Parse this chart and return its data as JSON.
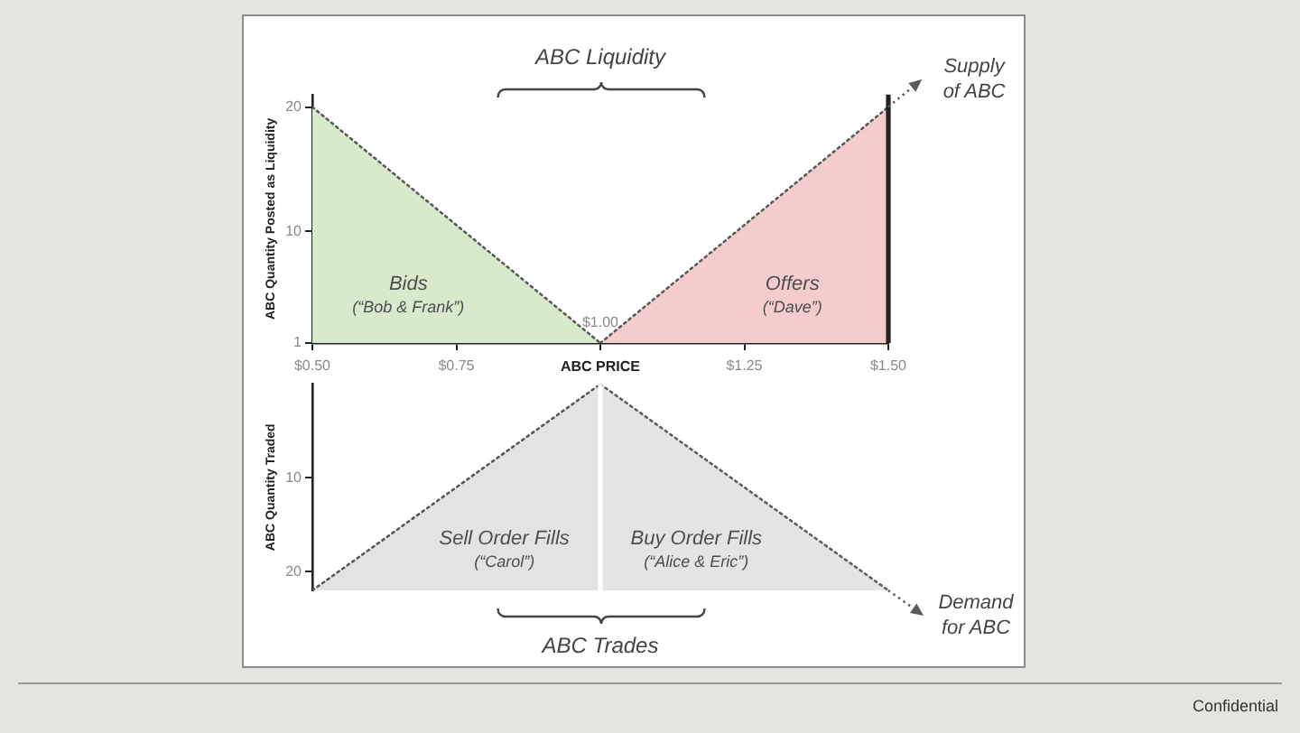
{
  "chart_data": [
    {
      "type": "area",
      "title": "ABC Liquidity",
      "xlabel": "ABC PRICE",
      "ylabel": "ABC Quantity Posted as Liquidity",
      "xlim": [
        0.5,
        1.5
      ],
      "xticks": [
        {
          "value": 0.5,
          "label": "$0.50"
        },
        {
          "value": 0.75,
          "label": "$0.75"
        },
        {
          "value": 1,
          "label": null
        },
        {
          "value": 1.25,
          "label": "$1.25"
        },
        {
          "value": 1.5,
          "label": "$1.50"
        }
      ],
      "ylim": [
        1,
        21
      ],
      "yticks": [
        1,
        10,
        20
      ],
      "line_style": "dotted",
      "series": [
        {
          "name": "Bids",
          "color": "#d8eacc",
          "x": [
            0.5,
            1
          ],
          "values": [
            20,
            1
          ]
        },
        {
          "name": "Offers",
          "color": "#f5cccc",
          "x": [
            1,
            1.5
          ],
          "values": [
            1,
            20
          ]
        }
      ],
      "ref_lines": [
        {
          "axis": "x",
          "value": 1.5,
          "color": "#222222"
        }
      ],
      "annotations": [
        "(“Bob & Frank”)",
        "(“Dave”)",
        {
          "text": "$1.00",
          "x": 1,
          "y": 1
        },
        "Supply of ABC"
      ]
    },
    {
      "type": "line",
      "title": "ABC Trades",
      "ylabel": "ABC Quantity Traded",
      "xlim": [
        0.5,
        1.5
      ],
      "ylim": [
        22,
        0
      ],
      "yticks": [
        10,
        20
      ],
      "tick_labels": "y",
      "line_style": "dotted",
      "series": [
        {
          "name": "Sell Order Fills",
          "color": "#575757",
          "x": [
            0.5,
            1
          ],
          "values": [
            22,
            0
          ],
          "lower": [
            22,
            0
          ],
          "upper": [
            22,
            22
          ]
        },
        {
          "name": "Buy Order Fills",
          "color": "#5e5e5e",
          "x": [
            1,
            1.5
          ],
          "values": [
            0,
            22
          ],
          "lower": [
            0,
            22
          ],
          "upper": [
            22,
            22
          ]
        }
      ],
      "ref_lines": [
        {
          "axis": "x",
          "value": 1,
          "color": "#ffffff"
        }
      ],
      "annotations": [
        "(“Carol”)",
        "(“Alice & Eric”)",
        "Demand for ABC",
        "Confidential"
      ]
    }
  ]
}
